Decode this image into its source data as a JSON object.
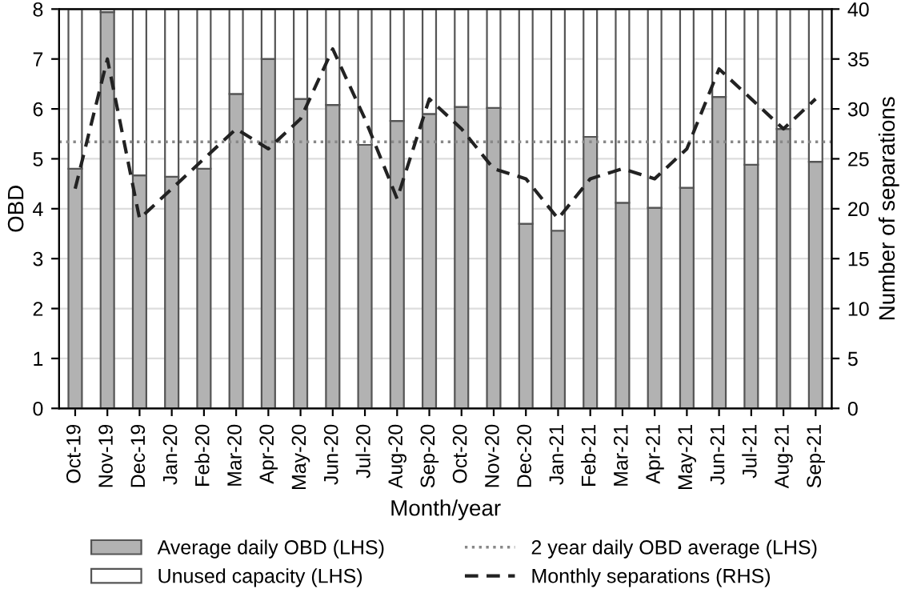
{
  "chart_data": {
    "type": "bar",
    "stacked": true,
    "xlabel": "Month/year",
    "ylabel": "OBD",
    "y2label": "Number of separations",
    "categories": [
      "Oct-19",
      "Nov-19",
      "Dec-19",
      "Jan-20",
      "Feb-20",
      "Mar-20",
      "Apr-20",
      "May-20",
      "Jun-20",
      "Jul-20",
      "Aug-20",
      "Sep-20",
      "Oct-20",
      "Nov-20",
      "Dec-20",
      "Jan-21",
      "Feb-21",
      "Mar-21",
      "Apr-21",
      "May-21",
      "Jun-21",
      "Jul-21",
      "Aug-21",
      "Sep-21"
    ],
    "series": [
      {
        "name": "Average daily OBD (LHS)",
        "color": "#b2b2b2",
        "values": [
          4.8,
          7.94,
          4.67,
          4.64,
          4.8,
          6.3,
          7.0,
          6.2,
          6.08,
          5.28,
          5.76,
          5.9,
          6.04,
          6.02,
          3.7,
          3.56,
          5.44,
          4.12,
          4.02,
          4.42,
          6.24,
          4.88,
          5.6,
          4.94
        ]
      },
      {
        "name": "Unused capacity (LHS)",
        "color": "#ffffff",
        "values": [
          3.2,
          0.06,
          3.33,
          3.36,
          3.2,
          1.7,
          1.0,
          1.8,
          1.92,
          2.72,
          2.24,
          2.1,
          1.96,
          1.98,
          4.3,
          4.44,
          2.56,
          3.88,
          3.98,
          3.58,
          1.76,
          3.12,
          2.4,
          3.06
        ]
      },
      {
        "name": "Monthly separations (RHS)",
        "type": "line",
        "axis": "y2",
        "color": "#222222",
        "line_style": "dashed",
        "values": [
          22,
          35,
          19,
          22,
          25,
          28,
          26,
          29,
          36,
          29,
          21,
          31,
          28,
          24,
          23,
          19,
          23,
          24,
          23,
          26,
          34,
          31,
          28,
          31
        ]
      }
    ],
    "ref_lines": [
      {
        "axis": "y",
        "value": 5.34,
        "label": "2 year daily OBD average (LHS)",
        "color": "#888888",
        "line_style": "dotted"
      }
    ],
    "ylim": [
      0,
      8
    ],
    "yticks": [
      0,
      1,
      2,
      3,
      4,
      5,
      6,
      7,
      8
    ],
    "y2lim": [
      0,
      40
    ],
    "y2ticks": [
      0,
      5,
      10,
      15,
      20,
      25,
      30,
      35,
      40
    ],
    "grid": "y",
    "legend": "bottom"
  }
}
